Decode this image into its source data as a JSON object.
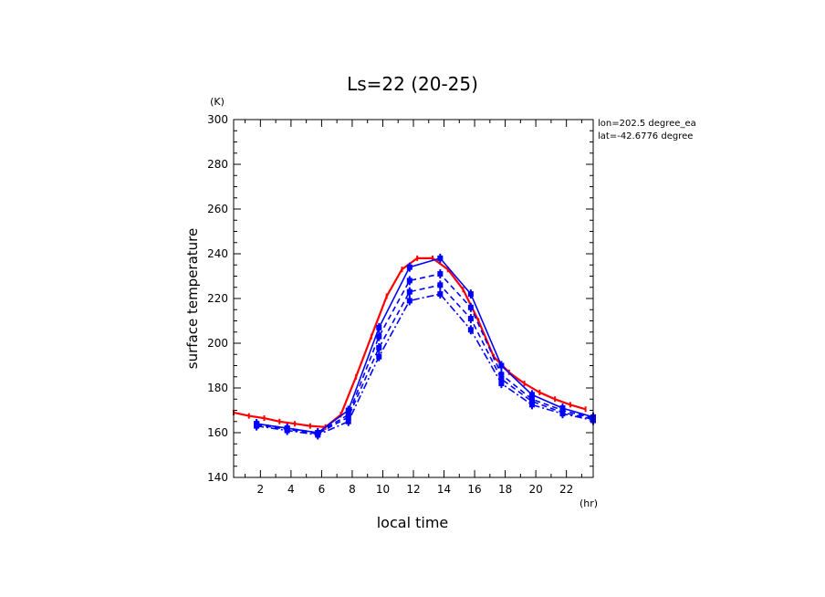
{
  "chart_data": {
    "type": "line",
    "title": "Ls=22 (20-25)",
    "xlabel": "local time",
    "ylabel": "surface temperature",
    "x_unit": "(hr)",
    "y_unit": "(K)",
    "xlim": [
      0.25,
      23.75
    ],
    "ylim": [
      140,
      300
    ],
    "x_ticks": [
      2,
      4,
      6,
      8,
      10,
      12,
      14,
      16,
      18,
      20,
      22
    ],
    "y_ticks": [
      140,
      160,
      180,
      200,
      220,
      240,
      260,
      280,
      300
    ],
    "annotations": [
      "lon=202.5 degree_ea",
      "lat=-42.6776 degree"
    ],
    "grid": false,
    "series": [
      {
        "color": "#ff0000",
        "style": "solid",
        "x": [
          0.25,
          1.25,
          2.25,
          3.25,
          4.25,
          5.25,
          6.25,
          7.25,
          8.25,
          9.25,
          10.25,
          11.25,
          12.25,
          13.25,
          14.25,
          15.25,
          16.25,
          17.25,
          18.25,
          19.25,
          20.25,
          21.25,
          22.25,
          23.25
        ],
        "values": [
          169,
          167.5,
          166.5,
          165,
          164,
          163,
          162.5,
          168,
          185,
          203,
          221,
          233,
          238,
          238,
          233,
          224,
          210,
          194,
          187,
          182,
          178,
          175,
          172.5,
          170.5
        ]
      },
      {
        "color": "#0000ff",
        "style": "solid",
        "x": [
          1.75,
          3.75,
          5.75,
          7.75,
          9.75,
          11.75,
          13.75,
          15.75,
          17.75,
          19.75,
          21.75,
          23.75
        ],
        "values": [
          164,
          162,
          160,
          170,
          207,
          234,
          238,
          222,
          190,
          177,
          171,
          167
        ]
      },
      {
        "color": "#0000ff",
        "style": "dashed",
        "x": [
          1.75,
          3.75,
          5.75,
          7.75,
          9.75,
          11.75,
          13.75,
          15.75,
          17.75,
          19.75,
          21.75,
          23.75
        ],
        "values": [
          164,
          162,
          160,
          168,
          203,
          228,
          231,
          216,
          186,
          175,
          170,
          166.5
        ]
      },
      {
        "color": "#0000ff",
        "style": "dashed",
        "x": [
          1.75,
          3.75,
          5.75,
          7.75,
          9.75,
          11.75,
          13.75,
          15.75,
          17.75,
          19.75,
          21.75,
          23.75
        ],
        "values": [
          163.5,
          161.5,
          159.5,
          167,
          198,
          223,
          226,
          211,
          184,
          174,
          169,
          166
        ]
      },
      {
        "color": "#0000ff",
        "style": "dashdot",
        "x": [
          1.75,
          3.75,
          5.75,
          7.75,
          9.75,
          11.75,
          13.75,
          15.75,
          17.75,
          19.75,
          21.75,
          23.75
        ],
        "values": [
          163,
          161,
          159,
          165,
          194,
          219,
          222,
          206,
          182,
          172.5,
          168.5,
          165.5
        ]
      }
    ]
  }
}
